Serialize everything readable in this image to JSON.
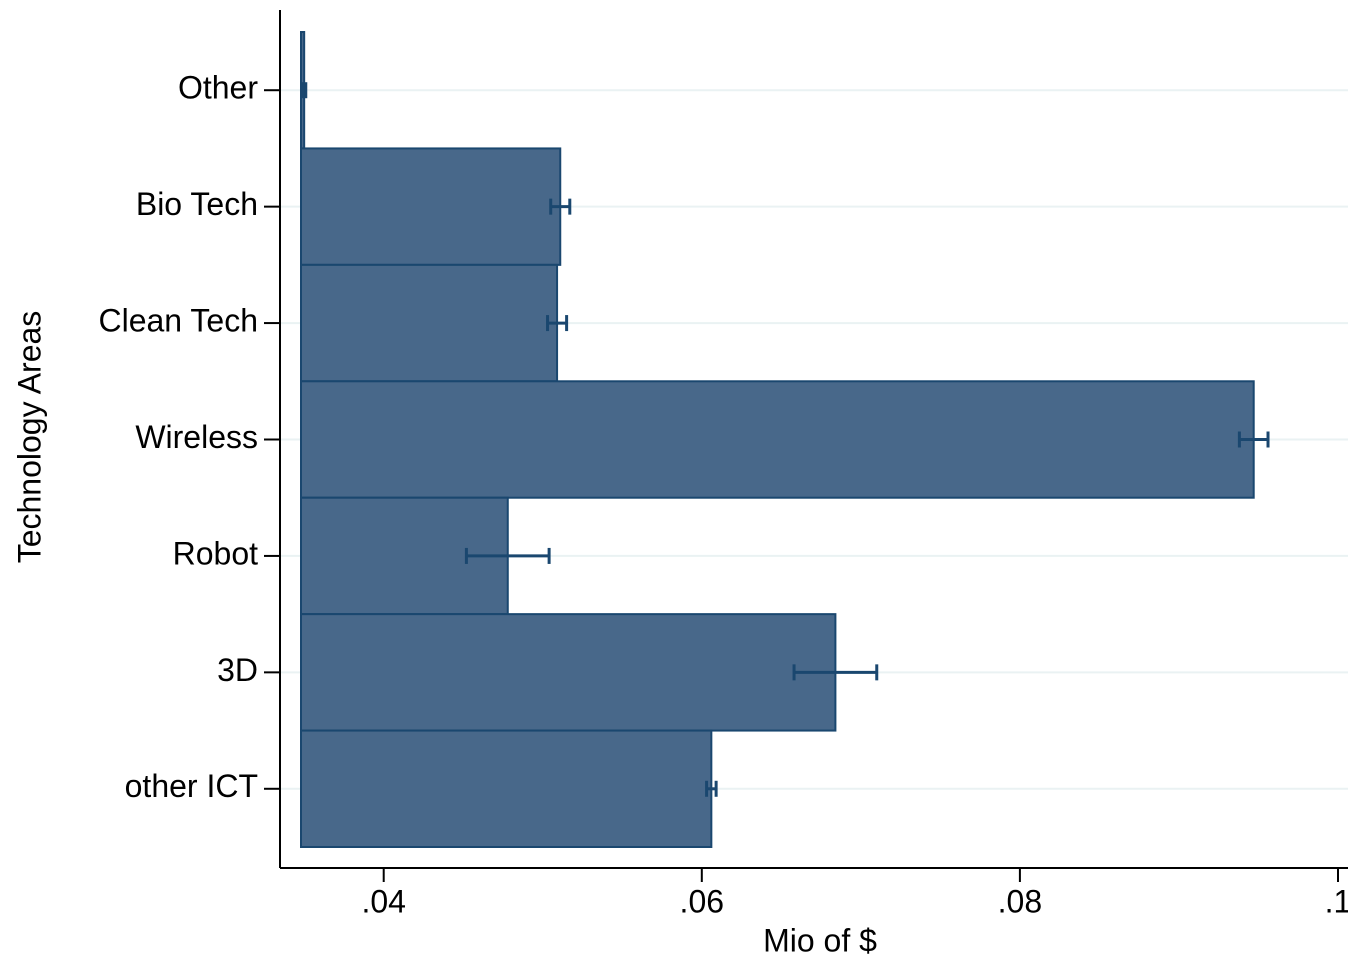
{
  "chart_data": {
    "type": "hbar",
    "categories": [
      "Other",
      "Bio Tech",
      "Clean Tech",
      "Wireless",
      "Robot",
      "3D",
      "other ICT"
    ],
    "values": [
      0.035,
      0.0511,
      0.0509,
      0.0947,
      0.0478,
      0.0684,
      0.0606
    ],
    "errors": [
      0.0001,
      0.0006,
      0.0006,
      0.0009,
      0.0026,
      0.0026,
      0.0003
    ],
    "color": "#48688a",
    "edge_color": "#1a476f",
    "error_color": "#1a476f",
    "xlim": [
      0.0348,
      0.1
    ],
    "xticks": [
      {
        "value": 0.04,
        "label": ".04"
      },
      {
        "value": 0.06,
        "label": ".06"
      },
      {
        "value": 0.08,
        "label": ".08"
      },
      {
        "value": 0.1,
        "label": ".1"
      }
    ],
    "xlabel": "Mio of $",
    "ylabel": "Technology Areas",
    "grid": true
  }
}
